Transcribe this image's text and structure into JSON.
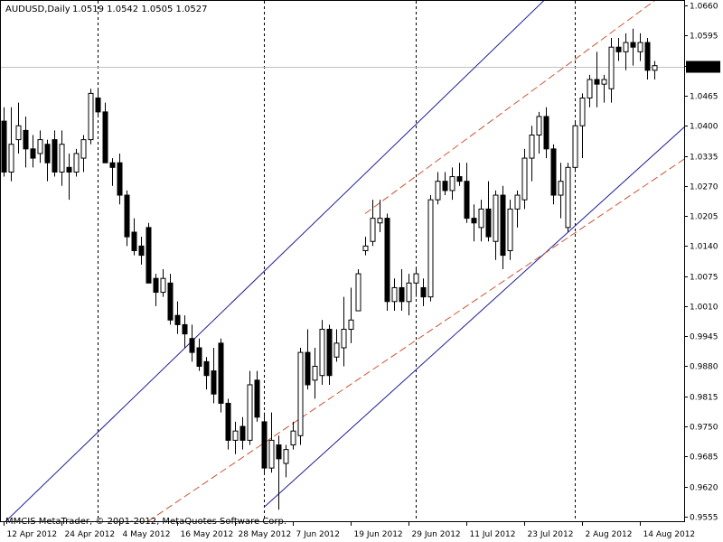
{
  "header": {
    "symbol": "AUDUSD,Daily",
    "ohlc": "1.0519 1.0542 1.0505 1.0527"
  },
  "footer": {
    "copyright": "MMCIS MetaTrader, © 2001-2012, MetaQuotes Software Corp."
  },
  "colors": {
    "background": "#ffffff",
    "frame": "#000000",
    "candle": "#000000",
    "channel_solid": "#1f1f9a",
    "channel_dashed": "#cc5533",
    "current_price_line": "#c0c0c0",
    "price_tag_bg": "#000000",
    "price_tag_text": "#ffffff"
  },
  "chart_data": {
    "type": "candlestick",
    "symbol": "AUDUSD",
    "timeframe": "Daily",
    "current_price": 1.0527,
    "ylim": [
      0.9545,
      1.067
    ],
    "y_ticks": [
      "1.0660",
      "1.0595",
      "1.0530",
      "1.0465",
      "1.0400",
      "1.0335",
      "1.0270",
      "1.0205",
      "1.0140",
      "1.0075",
      "1.0010",
      "0.9945",
      "0.9880",
      "0.9815",
      "0.9750",
      "0.9685",
      "0.9620",
      "0.9555"
    ],
    "x_ticks": [
      {
        "label": "12 Apr 2012",
        "index": 0
      },
      {
        "label": "24 Apr 2012",
        "index": 8
      },
      {
        "label": "4 May 2012",
        "index": 16
      },
      {
        "label": "16 May 2012",
        "index": 24
      },
      {
        "label": "28 May 2012",
        "index": 32
      },
      {
        "label": "7 Jun 2012",
        "index": 40
      },
      {
        "label": "19 Jun 2012",
        "index": 48
      },
      {
        "label": "29 Jun 2012",
        "index": 56
      },
      {
        "label": "11 Jul 2012",
        "index": 64
      },
      {
        "label": "23 Jul 2012",
        "index": 72
      },
      {
        "label": "2 Aug 2012",
        "index": 80
      },
      {
        "label": "14 Aug 2012",
        "index": 88
      }
    ],
    "period_separators": [
      13,
      36,
      57,
      79
    ],
    "candles": [
      [
        1.041,
        1.044,
        1.029,
        1.03
      ],
      [
        1.03,
        1.044,
        1.028,
        1.036
      ],
      [
        1.037,
        1.045,
        1.034,
        1.04
      ],
      [
        1.039,
        1.042,
        1.031,
        1.035
      ],
      [
        1.035,
        1.038,
        1.031,
        1.033
      ],
      [
        1.034,
        1.039,
        1.032,
        1.037
      ],
      [
        1.036,
        1.037,
        1.028,
        1.032
      ],
      [
        1.037,
        1.039,
        1.029,
        1.03
      ],
      [
        1.03,
        1.039,
        1.027,
        1.036
      ],
      [
        1.031,
        1.034,
        1.024,
        1.03
      ],
      [
        1.03,
        1.035,
        1.029,
        1.034
      ],
      [
        1.033,
        1.038,
        1.03,
        1.037
      ],
      [
        1.037,
        1.048,
        1.036,
        1.047
      ],
      [
        1.046,
        1.048,
        1.042,
        1.043
      ],
      [
        1.043,
        1.045,
        1.032,
        1.032
      ],
      [
        1.032,
        1.033,
        1.027,
        1.031
      ],
      [
        1.032,
        1.034,
        1.023,
        1.025
      ],
      [
        1.025,
        1.026,
        1.014,
        1.016
      ],
      [
        1.017,
        1.02,
        1.012,
        1.013
      ],
      [
        1.014,
        1.016,
        1.01,
        1.012
      ],
      [
        1.018,
        1.019,
        1.006,
        1.006
      ],
      [
        1.007,
        1.008,
        1.001,
        1.004
      ],
      [
        1.004,
        1.009,
        1.003,
        1.007
      ],
      [
        1.006,
        1.008,
        0.997,
        0.998
      ],
      [
        0.999,
        1.002,
        0.995,
        0.997
      ],
      [
        0.997,
        0.999,
        0.992,
        0.995
      ],
      [
        0.994,
        0.997,
        0.989,
        0.991
      ],
      [
        0.992,
        0.994,
        0.987,
        0.988
      ],
      [
        0.989,
        0.99,
        0.983,
        0.986
      ],
      [
        0.987,
        0.992,
        0.98,
        0.982
      ],
      [
        0.993,
        0.994,
        0.978,
        0.98
      ],
      [
        0.98,
        0.981,
        0.97,
        0.972
      ],
      [
        0.972,
        0.976,
        0.969,
        0.974
      ],
      [
        0.975,
        0.977,
        0.97,
        0.972
      ],
      [
        0.972,
        0.987,
        0.971,
        0.984
      ],
      [
        0.985,
        0.987,
        0.976,
        0.977
      ],
      [
        0.976,
        0.978,
        0.965,
        0.966
      ],
      [
        0.966,
        0.978,
        0.965,
        0.972
      ],
      [
        0.971,
        0.973,
        0.957,
        0.968
      ],
      [
        0.967,
        0.971,
        0.964,
        0.97
      ],
      [
        0.971,
        0.976,
        0.97,
        0.974
      ],
      [
        0.973,
        0.992,
        0.971,
        0.991
      ],
      [
        0.991,
        0.996,
        0.983,
        0.984
      ],
      [
        0.985,
        0.992,
        0.981,
        0.988
      ],
      [
        0.986,
        0.998,
        0.984,
        0.996
      ],
      [
        0.996,
        0.997,
        0.984,
        0.986
      ],
      [
        0.99,
        0.996,
        0.989,
        0.993
      ],
      [
        0.992,
        1.003,
        0.988,
        0.996
      ],
      [
        0.996,
        1.005,
        0.993,
        0.998
      ],
      [
        1.0,
        1.009,
        1.0,
        1.008
      ],
      [
        1.013,
        1.016,
        1.012,
        1.014
      ],
      [
        1.015,
        1.024,
        1.014,
        1.02
      ],
      [
        1.019,
        1.024,
        1.017,
        1.02
      ],
      [
        1.02,
        1.021,
        1.0,
        1.002
      ],
      [
        1.002,
        1.007,
        1.0,
        1.005
      ],
      [
        1.005,
        1.009,
        1.0,
        1.002
      ],
      [
        1.002,
        1.008,
        0.999,
        1.006
      ],
      [
        1.006,
        1.009,
        1.003,
        1.008
      ],
      [
        1.005,
        1.007,
        1.001,
        1.003
      ],
      [
        1.003,
        1.025,
        1.002,
        1.024
      ],
      [
        1.024,
        1.03,
        1.023,
        1.028
      ],
      [
        1.028,
        1.03,
        1.025,
        1.026
      ],
      [
        1.026,
        1.031,
        1.024,
        1.029
      ],
      [
        1.029,
        1.032,
        1.027,
        1.028
      ],
      [
        1.028,
        1.032,
        1.019,
        1.02
      ],
      [
        1.02,
        1.023,
        1.015,
        1.019
      ],
      [
        1.018,
        1.024,
        1.015,
        1.022
      ],
      [
        1.022,
        1.028,
        1.015,
        1.016
      ],
      [
        1.015,
        1.026,
        1.011,
        1.025
      ],
      [
        1.025,
        1.027,
        1.009,
        1.012
      ],
      [
        1.013,
        1.024,
        1.011,
        1.022
      ],
      [
        1.022,
        1.026,
        1.018,
        1.025
      ],
      [
        1.024,
        1.035,
        1.022,
        1.033
      ],
      [
        1.033,
        1.04,
        1.028,
        1.038
      ],
      [
        1.038,
        1.043,
        1.034,
        1.042
      ],
      [
        1.042,
        1.044,
        1.033,
        1.035
      ],
      [
        1.035,
        1.036,
        1.023,
        1.025
      ],
      [
        1.025,
        1.032,
        1.02,
        1.028
      ],
      [
        1.018,
        1.032,
        1.017,
        1.031
      ],
      [
        1.031,
        1.041,
        1.03,
        1.04
      ],
      [
        1.04,
        1.047,
        1.033,
        1.046
      ],
      [
        1.046,
        1.051,
        1.044,
        1.05
      ],
      [
        1.05,
        1.056,
        1.044,
        1.049
      ],
      [
        1.049,
        1.051,
        1.045,
        1.05
      ],
      [
        1.048,
        1.059,
        1.045,
        1.057
      ],
      [
        1.057,
        1.059,
        1.054,
        1.056
      ],
      [
        1.056,
        1.06,
        1.052,
        1.058
      ],
      [
        1.058,
        1.061,
        1.053,
        1.057
      ],
      [
        1.056,
        1.06,
        1.054,
        1.058
      ],
      [
        1.058,
        1.059,
        1.05,
        1.052
      ],
      [
        1.052,
        1.054,
        1.05,
        1.053
      ]
    ],
    "trendlines": [
      {
        "style": "solid",
        "points": [
          [
            -2,
            0.951
          ],
          [
            76,
            1.069
          ]
        ]
      },
      {
        "style": "solid",
        "points": [
          [
            36,
            0.9575
          ],
          [
            100,
            1.048
          ]
        ]
      },
      {
        "style": "dashed",
        "points": [
          [
            20,
            0.9545
          ],
          [
            100,
            1.039
          ]
        ]
      },
      {
        "style": "dashed",
        "points": [
          [
            50,
            1.021
          ],
          [
            90,
            1.067
          ]
        ]
      }
    ]
  }
}
